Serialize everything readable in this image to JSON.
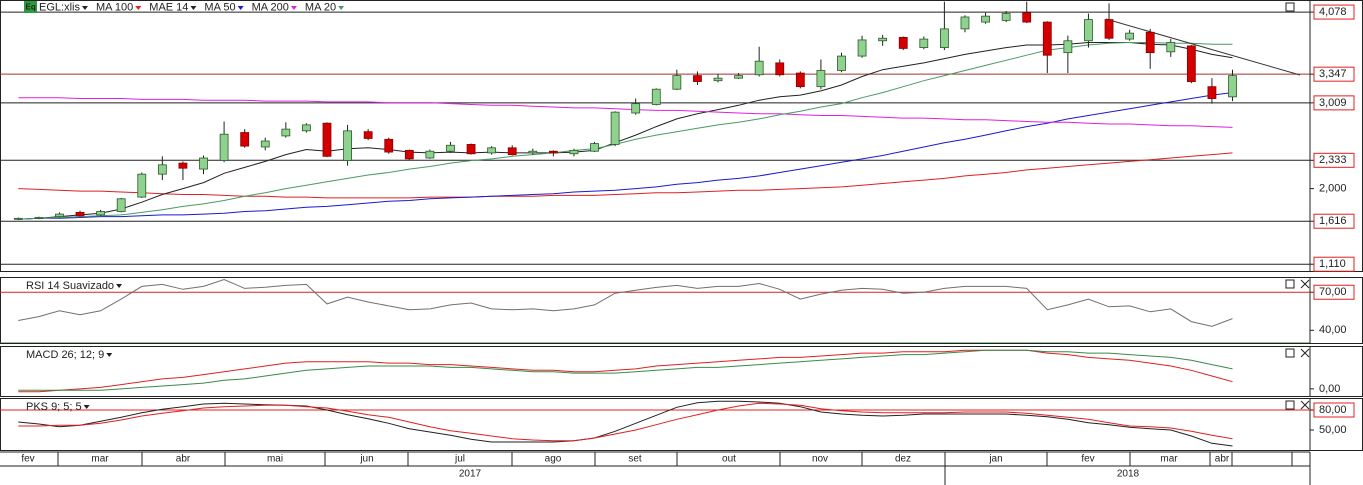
{
  "x_axis": {
    "months": [
      "fev",
      "mar",
      "abr",
      "mai",
      "jun",
      "jul",
      "ago",
      "set",
      "out",
      "nov",
      "dez",
      "jan",
      "fev",
      "mar",
      "abr"
    ],
    "years": [
      "2017",
      "2018"
    ]
  },
  "chart_data": [
    {
      "type": "candlestick",
      "title": "EGL:xlis",
      "up_color": "#8fd18f",
      "down_color": "#d40000",
      "open": [
        1.64,
        1.65,
        1.67,
        1.72,
        1.69,
        1.73,
        1.9,
        2.17,
        2.3,
        2.23,
        2.33,
        2.66,
        2.49,
        2.62,
        2.68,
        2.77,
        2.33,
        2.67,
        2.58,
        2.45,
        2.36,
        2.44,
        2.52,
        2.42,
        2.48,
        2.42,
        2.44,
        2.41,
        2.44,
        2.52,
        2.89,
        2.99,
        3.17,
        3.33,
        3.27,
        3.3,
        3.34,
        3.48,
        3.36,
        3.2,
        3.39,
        3.56,
        3.74,
        3.78,
        3.66,
        3.66,
        3.88,
        3.96,
        3.98,
        4.07,
        3.96,
        3.6,
        3.74,
        3.99,
        3.76,
        3.84,
        3.61,
        3.68,
        3.2,
        3.08
      ],
      "high": [
        1.66,
        1.67,
        1.72,
        1.74,
        1.75,
        1.89,
        2.19,
        2.38,
        2.32,
        2.39,
        2.79,
        2.7,
        2.6,
        2.78,
        2.77,
        2.78,
        2.75,
        2.7,
        2.6,
        2.46,
        2.46,
        2.55,
        2.53,
        2.5,
        2.51,
        2.47,
        2.45,
        2.47,
        2.55,
        2.91,
        3.06,
        3.18,
        3.4,
        3.38,
        3.35,
        3.36,
        3.67,
        3.52,
        3.38,
        3.52,
        3.6,
        3.8,
        3.81,
        3.79,
        3.79,
        4.2,
        4.04,
        4.07,
        4.09,
        4.2,
        3.97,
        3.8,
        4.06,
        4.18,
        3.87,
        3.88,
        3.76,
        3.69,
        3.3,
        3.4
      ],
      "low": [
        1.63,
        1.64,
        1.66,
        1.67,
        1.68,
        1.72,
        1.89,
        2.1,
        2.1,
        2.17,
        2.31,
        2.48,
        2.45,
        2.6,
        2.66,
        2.37,
        2.27,
        2.57,
        2.41,
        2.33,
        2.35,
        2.42,
        2.4,
        2.4,
        2.39,
        2.4,
        2.38,
        2.38,
        2.43,
        2.5,
        2.87,
        2.98,
        3.16,
        3.22,
        3.25,
        3.29,
        3.32,
        3.32,
        3.18,
        3.17,
        3.37,
        3.54,
        3.68,
        3.63,
        3.64,
        3.63,
        3.84,
        3.94,
        3.96,
        3.95,
        3.36,
        3.36,
        3.66,
        3.75,
        3.74,
        3.41,
        3.55,
        3.24,
        3.0,
        3.03
      ],
      "close": [
        1.65,
        1.66,
        1.7,
        1.68,
        1.73,
        1.88,
        2.17,
        2.28,
        2.24,
        2.36,
        2.64,
        2.5,
        2.56,
        2.7,
        2.75,
        2.38,
        2.68,
        2.59,
        2.43,
        2.35,
        2.44,
        2.51,
        2.41,
        2.48,
        2.4,
        2.44,
        2.42,
        2.45,
        2.53,
        2.9,
        3.0,
        3.17,
        3.33,
        3.26,
        3.3,
        3.33,
        3.5,
        3.34,
        3.2,
        3.39,
        3.56,
        3.75,
        3.77,
        3.65,
        3.76,
        3.88,
        4.02,
        4.03,
        4.06,
        3.96,
        3.57,
        3.74,
        3.99,
        3.77,
        3.83,
        3.6,
        3.72,
        3.26,
        3.06,
        3.33
      ],
      "series": [
        {
          "name": "MA 100",
          "color": "#e02020",
          "values": [
            2.0,
            1.99,
            1.98,
            1.97,
            1.97,
            1.96,
            1.95,
            1.94,
            1.93,
            1.93,
            1.92,
            1.91,
            1.91,
            1.9,
            1.9,
            1.89,
            1.89,
            1.89,
            1.89,
            1.89,
            1.9,
            1.9,
            1.9,
            1.91,
            1.91,
            1.91,
            1.92,
            1.92,
            1.92,
            1.93,
            1.94,
            1.95,
            1.95,
            1.96,
            1.97,
            1.98,
            1.98,
            1.99,
            2.0,
            2.01,
            2.02,
            2.04,
            2.06,
            2.08,
            2.1,
            2.12,
            2.15,
            2.17,
            2.19,
            2.22,
            2.24,
            2.26,
            2.28,
            2.3,
            2.32,
            2.34,
            2.36,
            2.38,
            2.4,
            2.42
          ]
        },
        {
          "name": "MAE 14",
          "color": "#222222",
          "values": [
            1.64,
            1.65,
            1.67,
            1.69,
            1.71,
            1.76,
            1.84,
            1.93,
            2.0,
            2.07,
            2.18,
            2.25,
            2.32,
            2.4,
            2.46,
            2.44,
            2.47,
            2.48,
            2.46,
            2.43,
            2.42,
            2.43,
            2.42,
            2.43,
            2.42,
            2.42,
            2.42,
            2.43,
            2.45,
            2.54,
            2.63,
            2.73,
            2.82,
            2.88,
            2.93,
            2.98,
            3.04,
            3.08,
            3.1,
            3.15,
            3.22,
            3.32,
            3.4,
            3.44,
            3.48,
            3.53,
            3.58,
            3.62,
            3.66,
            3.69,
            3.69,
            3.7,
            3.72,
            3.72,
            3.72,
            3.7,
            3.69,
            3.64,
            3.58,
            3.54
          ]
        },
        {
          "name": "MA 50",
          "color": "#1a1ad0",
          "values": [
            1.64,
            1.65,
            1.65,
            1.66,
            1.67,
            1.67,
            1.68,
            1.69,
            1.69,
            1.7,
            1.71,
            1.73,
            1.74,
            1.76,
            1.78,
            1.79,
            1.81,
            1.83,
            1.85,
            1.86,
            1.88,
            1.89,
            1.9,
            1.91,
            1.92,
            1.93,
            1.94,
            1.96,
            1.97,
            1.98,
            2.0,
            2.02,
            2.05,
            2.07,
            2.1,
            2.12,
            2.15,
            2.19,
            2.23,
            2.27,
            2.31,
            2.35,
            2.39,
            2.44,
            2.49,
            2.54,
            2.58,
            2.63,
            2.68,
            2.73,
            2.77,
            2.82,
            2.86,
            2.9,
            2.94,
            2.98,
            3.02,
            3.06,
            3.1,
            3.13
          ]
        },
        {
          "name": "MA 200",
          "color": "#e020e0",
          "values": [
            3.07,
            3.07,
            3.07,
            3.06,
            3.06,
            3.06,
            3.05,
            3.05,
            3.05,
            3.04,
            3.04,
            3.04,
            3.03,
            3.03,
            3.03,
            3.02,
            3.02,
            3.02,
            3.01,
            3.01,
            3.01,
            3.0,
            2.99,
            2.98,
            2.98,
            2.97,
            2.96,
            2.95,
            2.95,
            2.94,
            2.93,
            2.92,
            2.92,
            2.91,
            2.9,
            2.89,
            2.88,
            2.88,
            2.87,
            2.86,
            2.86,
            2.85,
            2.84,
            2.83,
            2.83,
            2.82,
            2.81,
            2.81,
            2.8,
            2.79,
            2.78,
            2.78,
            2.77,
            2.76,
            2.76,
            2.75,
            2.74,
            2.74,
            2.73,
            2.72
          ]
        },
        {
          "name": "MA 20",
          "color": "#4a9a64",
          "values": [
            1.64,
            1.65,
            1.66,
            1.67,
            1.68,
            1.69,
            1.72,
            1.75,
            1.79,
            1.82,
            1.86,
            1.91,
            1.95,
            2.0,
            2.04,
            2.08,
            2.12,
            2.16,
            2.19,
            2.23,
            2.26,
            2.3,
            2.33,
            2.35,
            2.38,
            2.4,
            2.42,
            2.45,
            2.47,
            2.52,
            2.58,
            2.63,
            2.67,
            2.71,
            2.75,
            2.78,
            2.82,
            2.87,
            2.91,
            2.96,
            3.0,
            3.07,
            3.13,
            3.2,
            3.27,
            3.33,
            3.39,
            3.45,
            3.51,
            3.57,
            3.63,
            3.66,
            3.69,
            3.71,
            3.72,
            3.72,
            3.71,
            3.71,
            3.7,
            3.7
          ]
        }
      ],
      "ylim": [
        1.03,
        4.22
      ],
      "yticks": [
        {
          "value": 4.078,
          "label": "4,078"
        },
        {
          "value": 3.347,
          "label": "3,347"
        },
        {
          "value": 3.009,
          "label": "3,009"
        },
        {
          "value": 2.333,
          "label": "2,333"
        },
        {
          "value": 2.0,
          "label": "2,000"
        },
        {
          "value": 1.616,
          "label": "1,616"
        },
        {
          "value": 1.11,
          "label": "1,110"
        }
      ],
      "level_lines": [
        {
          "value": 4.078,
          "color": "#222222"
        },
        {
          "value": 3.347,
          "color": "#a03030"
        },
        {
          "value": 3.009,
          "color": "#222222"
        },
        {
          "value": 2.333,
          "color": "#222222"
        },
        {
          "value": 1.616,
          "color": "#222222"
        },
        {
          "value": 1.11,
          "color": "#222222"
        }
      ]
    },
    {
      "type": "line",
      "title": "RSI 14 Suavizado",
      "series": [
        {
          "color": "#707070",
          "values": [
            47.7,
            50.8,
            55.4,
            52.3,
            55.4,
            64.6,
            74.6,
            76.2,
            72.3,
            74.6,
            80.0,
            73.0,
            74.0,
            75.4,
            76.2,
            60.8,
            66.2,
            62.3,
            59.2,
            56.2,
            56.9,
            60.0,
            61.5,
            56.9,
            56.2,
            56.9,
            55.4,
            56.9,
            60.0,
            69.2,
            71.5,
            73.8,
            75.4,
            73.0,
            74.6,
            74.6,
            76.9,
            72.3,
            64.6,
            68.5,
            71.5,
            73.0,
            72.3,
            69.2,
            70.0,
            73.0,
            74.6,
            74.6,
            74.6,
            73.0,
            56.2,
            60.0,
            64.6,
            58.5,
            59.2,
            54.6,
            56.9,
            46.9,
            43.1,
            49.2
          ]
        }
      ],
      "ylim": [
        30,
        82
      ],
      "yticks": [
        {
          "value": 70,
          "label": "70,00"
        },
        {
          "value": 40,
          "label": "40,00"
        }
      ],
      "level_lines": [
        {
          "value": 70,
          "color": "#e02020"
        },
        {
          "value": 30,
          "color": "#2a8a2a"
        }
      ]
    },
    {
      "type": "line",
      "title": "MACD 26; 12; 9",
      "series": [
        {
          "color": "#e02020",
          "values": [
            -0.02,
            -0.02,
            -0.01,
            0.0,
            0.01,
            0.03,
            0.05,
            0.07,
            0.08,
            0.1,
            0.12,
            0.14,
            0.16,
            0.18,
            0.19,
            0.19,
            0.19,
            0.19,
            0.18,
            0.18,
            0.17,
            0.17,
            0.16,
            0.15,
            0.14,
            0.13,
            0.13,
            0.12,
            0.12,
            0.13,
            0.14,
            0.16,
            0.17,
            0.18,
            0.19,
            0.2,
            0.21,
            0.22,
            0.22,
            0.23,
            0.24,
            0.25,
            0.25,
            0.26,
            0.26,
            0.26,
            0.27,
            0.27,
            0.27,
            0.27,
            0.25,
            0.24,
            0.22,
            0.21,
            0.2,
            0.18,
            0.16,
            0.13,
            0.09,
            0.05
          ]
        },
        {
          "color": "#3a8a4a",
          "values": [
            -0.01,
            -0.01,
            -0.01,
            -0.01,
            -0.01,
            0.0,
            0.01,
            0.02,
            0.03,
            0.04,
            0.06,
            0.07,
            0.09,
            0.11,
            0.13,
            0.14,
            0.15,
            0.16,
            0.16,
            0.16,
            0.16,
            0.15,
            0.15,
            0.14,
            0.13,
            0.12,
            0.12,
            0.11,
            0.11,
            0.11,
            0.12,
            0.13,
            0.14,
            0.15,
            0.15,
            0.16,
            0.17,
            0.18,
            0.19,
            0.2,
            0.21,
            0.22,
            0.23,
            0.24,
            0.24,
            0.25,
            0.26,
            0.27,
            0.27,
            0.27,
            0.26,
            0.26,
            0.25,
            0.25,
            0.24,
            0.23,
            0.22,
            0.2,
            0.17,
            0.14
          ]
        }
      ],
      "ylim": [
        -0.05,
        0.3
      ],
      "yticks": [
        {
          "value": 0,
          "label": "0,00"
        }
      ]
    },
    {
      "type": "line",
      "title": "PKS 9; 5; 5",
      "series": [
        {
          "color": "#222222",
          "values": [
            62,
            59,
            55,
            57,
            63,
            69,
            76,
            81,
            85,
            89,
            90,
            89,
            88,
            87,
            86,
            80,
            73,
            67,
            60,
            52,
            47,
            42,
            36,
            32,
            32,
            32,
            32,
            34,
            38,
            48,
            60,
            72,
            84,
            91,
            93,
            93,
            92,
            90,
            85,
            77,
            74,
            72,
            71,
            72,
            74,
            74,
            74,
            74,
            74,
            72,
            70,
            66,
            61,
            58,
            54,
            52,
            50,
            41,
            30,
            26
          ]
        },
        {
          "color": "#e02020",
          "values": [
            56,
            56,
            57,
            57,
            60,
            65,
            71,
            75,
            79,
            83,
            85,
            86,
            87,
            87,
            85,
            83,
            78,
            73,
            69,
            62,
            55,
            49,
            45,
            41,
            37,
            35,
            34,
            34,
            38,
            44,
            50,
            58,
            66,
            73,
            80,
            86,
            90,
            89,
            87,
            82,
            79,
            77,
            76,
            76,
            76,
            76,
            77,
            77,
            77,
            75,
            72,
            69,
            66,
            61,
            56,
            55,
            53,
            48,
            42,
            37
          ]
        }
      ],
      "ylim": [
        20,
        98
      ],
      "yticks": [
        {
          "value": 80,
          "label": "80,00"
        },
        {
          "value": 50,
          "label": "50,00"
        }
      ],
      "level_lines": [
        {
          "value": 80,
          "color": "#e02020"
        }
      ]
    }
  ]
}
